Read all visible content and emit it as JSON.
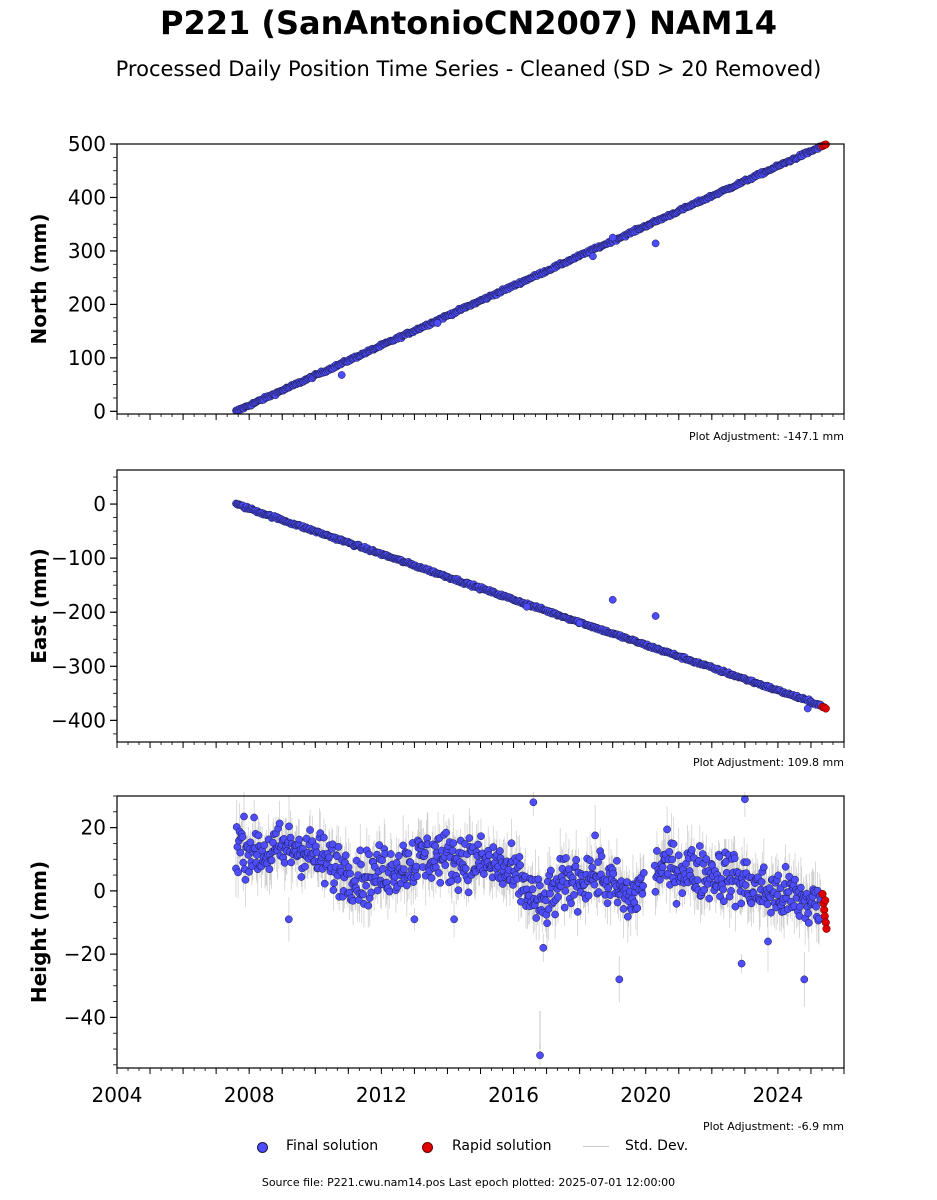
{
  "page": {
    "title": "P221 (SanAntonioCN2007) NAM14",
    "subtitle": "Processed Daily Position Time Series - Cleaned (SD > 20 Removed)",
    "source_text": "Source file: P221.cwu.nam14.pos  Last epoch plotted: 2025-07-01 12:00:00"
  },
  "legend": {
    "final_label": "Final solution",
    "rapid_label": "Rapid solution",
    "std_label": "Std. Dev."
  },
  "colors": {
    "final": "#4d4dff",
    "rapid": "#e00000",
    "edge": "#1a1a40",
    "stddev": "#9a9a9a"
  },
  "chart_data": [
    {
      "type": "scatter",
      "name": "north",
      "ylabel": "North (mm)",
      "ylim": [
        -5,
        500
      ],
      "yticks": [
        0,
        100,
        200,
        300,
        400
      ],
      "ytick_labels": [
        "0",
        "100",
        "200",
        "300",
        "400"
      ],
      "top_label": "500",
      "xlim": [
        2004,
        2026
      ],
      "adjustment": "Plot Adjustment: -147.1 mm",
      "final_start": [
        2007.6,
        0
      ],
      "final_end": [
        2025.3,
        495
      ],
      "outliers": [
        [
          2020.3,
          314
        ],
        [
          2019.0,
          325
        ],
        [
          2010.8,
          68
        ],
        [
          2018.4,
          290
        ],
        [
          2013.7,
          165
        ]
      ],
      "rapid": [
        [
          2025.35,
          496
        ],
        [
          2025.4,
          498
        ],
        [
          2025.45,
          499
        ]
      ]
    },
    {
      "type": "scatter",
      "name": "east",
      "ylabel": "East (mm)",
      "ylim": [
        -440,
        63
      ],
      "yticks": [
        0,
        -100,
        -200,
        -300,
        -400
      ],
      "ytick_labels": [
        "0",
        "−100",
        "−200",
        "−300",
        "−400"
      ],
      "xlim": [
        2004,
        2026
      ],
      "adjustment": "Plot Adjustment: 109.8 mm",
      "final_start": [
        2007.6,
        0
      ],
      "final_end": [
        2025.3,
        -372
      ],
      "outliers": [
        [
          2019.0,
          -177
        ],
        [
          2020.3,
          -207
        ],
        [
          2024.9,
          -378
        ],
        [
          2018.0,
          -220
        ],
        [
          2016.4,
          -190
        ]
      ],
      "rapid": [
        [
          2025.35,
          -375
        ],
        [
          2025.4,
          -376
        ],
        [
          2025.45,
          -378
        ]
      ]
    },
    {
      "type": "scatter",
      "name": "height",
      "ylabel": "Height (mm)",
      "ylim": [
        -56,
        30
      ],
      "yticks": [
        20,
        0,
        -20,
        -40
      ],
      "ytick_labels": [
        "20",
        "0",
        "−20",
        "−40"
      ],
      "xlim": [
        2004,
        2026
      ],
      "xticks": [
        2004,
        2008,
        2012,
        2016,
        2020,
        2024
      ],
      "xtick_labels": [
        "2004",
        "2008",
        "2012",
        "2016",
        "2020",
        "2024"
      ],
      "adjustment": "Plot Adjustment: -6.9 mm",
      "mean_profile": [
        [
          2007.6,
          15
        ],
        [
          2008.5,
          12
        ],
        [
          2009.5,
          14
        ],
        [
          2010.5,
          8
        ],
        [
          2011.5,
          4
        ],
        [
          2012.5,
          8
        ],
        [
          2013.5,
          11
        ],
        [
          2014.5,
          10
        ],
        [
          2015.5,
          8
        ],
        [
          2016.2,
          3
        ],
        [
          2016.8,
          -5
        ],
        [
          2017.5,
          2
        ],
        [
          2018.5,
          6
        ],
        [
          2019.5,
          -3
        ],
        [
          2020.5,
          8
        ],
        [
          2021.5,
          6
        ],
        [
          2022.5,
          5
        ],
        [
          2023.5,
          0
        ],
        [
          2024.5,
          -2
        ],
        [
          2025.3,
          -5
        ]
      ],
      "outliers": [
        [
          2016.8,
          -52
        ],
        [
          2019.2,
          -28
        ],
        [
          2024.8,
          -28
        ],
        [
          2023.0,
          29
        ],
        [
          2016.6,
          28
        ],
        [
          2009.2,
          -9
        ],
        [
          2013.0,
          -9
        ],
        [
          2014.2,
          -9
        ],
        [
          2016.9,
          -18
        ],
        [
          2022.9,
          -23
        ],
        [
          2023.7,
          -16
        ]
      ],
      "rapid": [
        [
          2025.35,
          -1
        ],
        [
          2025.38,
          -4
        ],
        [
          2025.4,
          -6
        ],
        [
          2025.42,
          -8
        ],
        [
          2025.45,
          -10
        ],
        [
          2025.47,
          -12
        ],
        [
          2025.43,
          -3
        ]
      ]
    }
  ]
}
